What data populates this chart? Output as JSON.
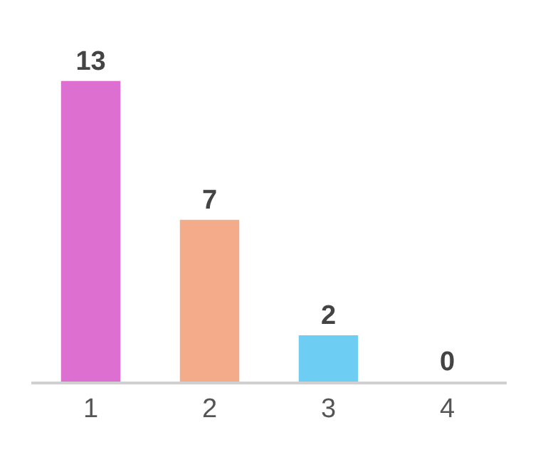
{
  "chart_data": {
    "type": "bar",
    "categories": [
      "1",
      "2",
      "3",
      "4"
    ],
    "values": [
      13,
      7,
      2,
      0
    ],
    "colors": [
      "#dd6fd0",
      "#f4ab8a",
      "#6dcdf3",
      "#b0b0b0"
    ],
    "data_labels": true,
    "legend": false
  }
}
